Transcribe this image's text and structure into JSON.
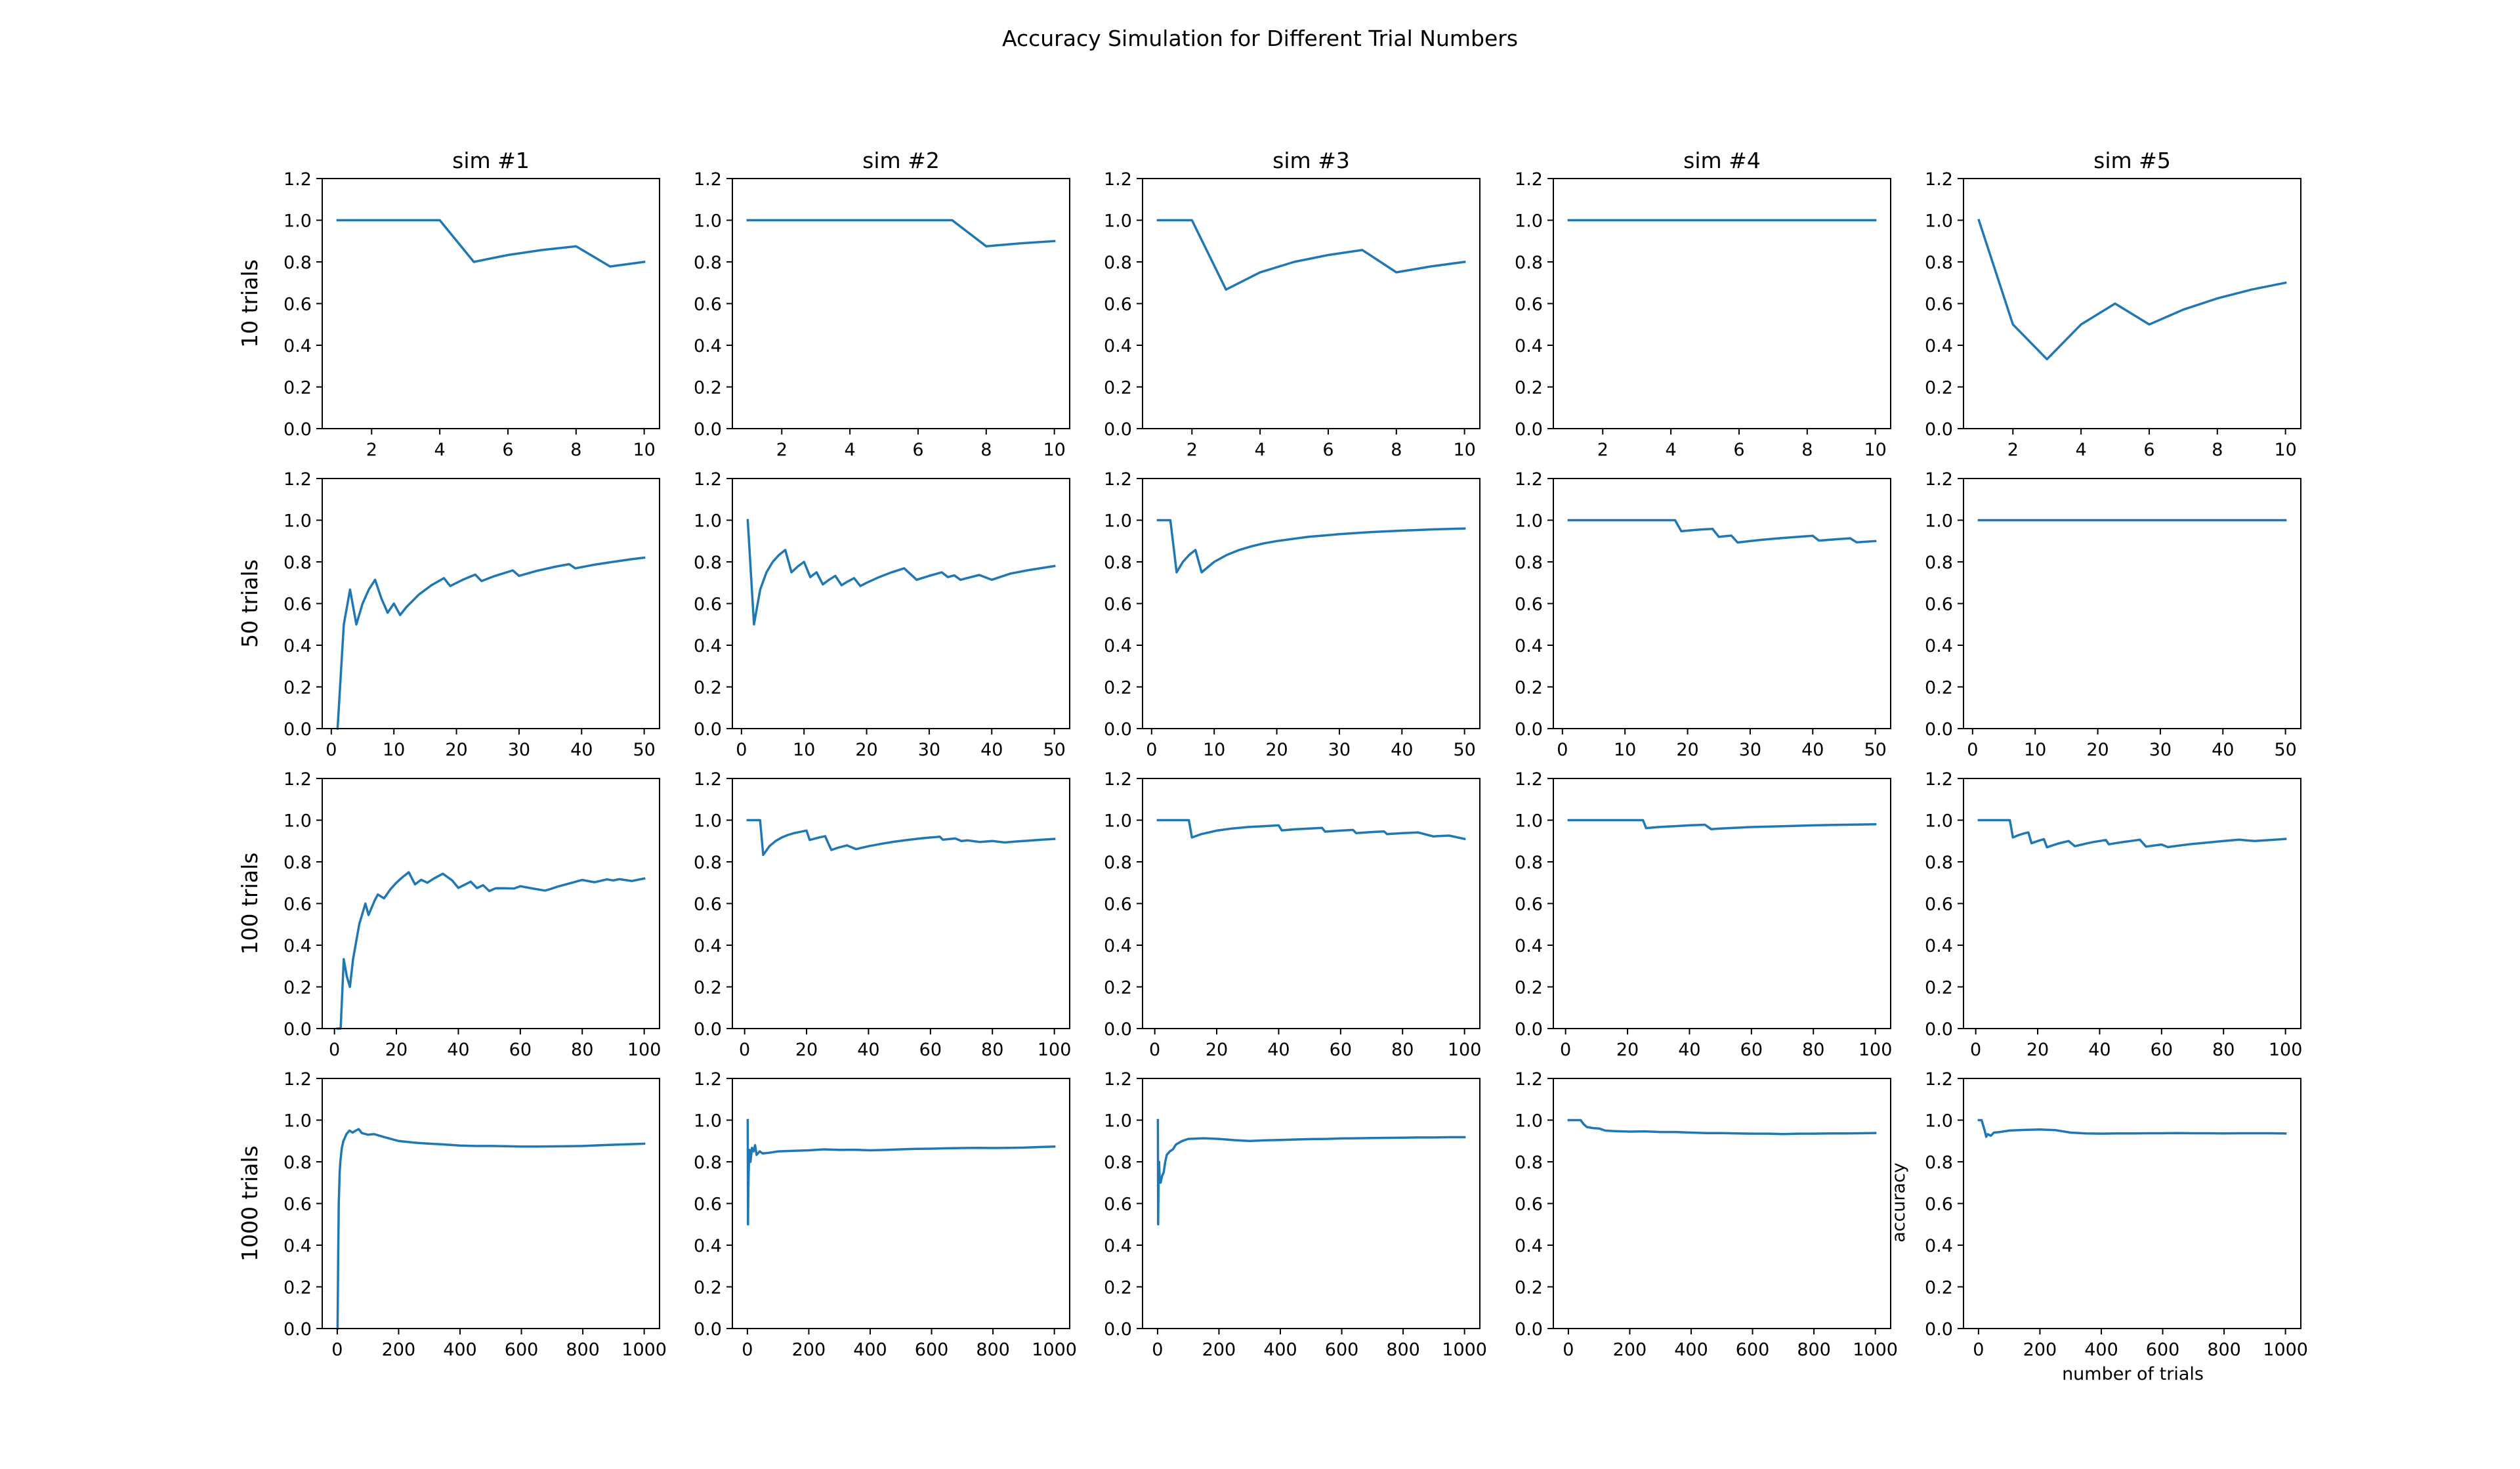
{
  "figure": {
    "title": "Accuracy Simulation for Different Trial Numbers",
    "x_axis_label": "number of trials",
    "y_axis_label": "accuracy",
    "line_color": "#1f77b4",
    "column_titles": [
      "sim #1",
      "sim #2",
      "sim #3",
      "sim #4",
      "sim #5"
    ],
    "row_labels": [
      "10 trials",
      "50 trials",
      "100 trials",
      "1000 trials"
    ],
    "y_ticks": [
      "0.0",
      "0.2",
      "0.4",
      "0.6",
      "0.8",
      "1.0",
      "1.2"
    ],
    "x_ticks_by_row": [
      [
        "2",
        "4",
        "6",
        "8",
        "10"
      ],
      [
        "0",
        "10",
        "20",
        "30",
        "40",
        "50"
      ],
      [
        "0",
        "20",
        "40",
        "60",
        "80",
        "100"
      ],
      [
        "0",
        "200",
        "400",
        "600",
        "800",
        "1000"
      ]
    ]
  },
  "chart_data": {
    "type": "line",
    "grid": false,
    "ylim": [
      0,
      1.2
    ],
    "panels": [
      {
        "row": 0,
        "col": 0,
        "xlim": [
          0.55,
          10.45
        ],
        "x": [
          1,
          2,
          3,
          4,
          5,
          6,
          7,
          8,
          9,
          10
        ],
        "y": [
          1,
          1,
          1,
          1,
          0.8,
          0.833,
          0.857,
          0.875,
          0.778,
          0.8
        ]
      },
      {
        "row": 0,
        "col": 1,
        "xlim": [
          0.55,
          10.45
        ],
        "x": [
          1,
          2,
          3,
          4,
          5,
          6,
          7,
          8,
          9,
          10
        ],
        "y": [
          1,
          1,
          1,
          1,
          1,
          1,
          1,
          0.875,
          0.889,
          0.9
        ]
      },
      {
        "row": 0,
        "col": 2,
        "xlim": [
          0.55,
          10.45
        ],
        "x": [
          1,
          2,
          3,
          4,
          5,
          6,
          7,
          8,
          9,
          10
        ],
        "y": [
          1,
          1,
          0.667,
          0.75,
          0.8,
          0.833,
          0.857,
          0.75,
          0.778,
          0.8
        ]
      },
      {
        "row": 0,
        "col": 3,
        "xlim": [
          0.55,
          10.45
        ],
        "x": [
          1,
          2,
          3,
          4,
          5,
          6,
          7,
          8,
          9,
          10
        ],
        "y": [
          1,
          1,
          1,
          1,
          1,
          1,
          1,
          1,
          1,
          1
        ]
      },
      {
        "row": 0,
        "col": 4,
        "xlim": [
          0.55,
          10.45
        ],
        "x": [
          1,
          2,
          3,
          4,
          5,
          6,
          7,
          8,
          9,
          10
        ],
        "y": [
          1,
          0.5,
          0.333,
          0.5,
          0.6,
          0.5,
          0.571,
          0.625,
          0.667,
          0.7
        ]
      },
      {
        "row": 1,
        "col": 0,
        "xlim": [
          -1.45,
          52.45
        ],
        "x": [
          1,
          2,
          3,
          4,
          5,
          6,
          7,
          8,
          9,
          10,
          11,
          12,
          14,
          16,
          18,
          19,
          21,
          23,
          24,
          26,
          29,
          30,
          33,
          36,
          38,
          39,
          42,
          45,
          48,
          50
        ],
        "y": [
          0,
          0.5,
          0.667,
          0.5,
          0.6,
          0.667,
          0.714,
          0.625,
          0.556,
          0.6,
          0.545,
          0.583,
          0.643,
          0.688,
          0.722,
          0.684,
          0.714,
          0.739,
          0.708,
          0.731,
          0.759,
          0.733,
          0.758,
          0.778,
          0.789,
          0.769,
          0.786,
          0.8,
          0.813,
          0.82
        ]
      },
      {
        "row": 1,
        "col": 1,
        "xlim": [
          -1.45,
          52.45
        ],
        "x": [
          1,
          2,
          3,
          4,
          5,
          6,
          7,
          8,
          9,
          10,
          11,
          12,
          13,
          14,
          15,
          16,
          17,
          18,
          19,
          20,
          22,
          24,
          26,
          28,
          30,
          32,
          33,
          34,
          35,
          36,
          38,
          40,
          43,
          46,
          50
        ],
        "y": [
          1,
          0.5,
          0.667,
          0.75,
          0.8,
          0.833,
          0.857,
          0.75,
          0.778,
          0.8,
          0.727,
          0.75,
          0.692,
          0.714,
          0.733,
          0.688,
          0.706,
          0.722,
          0.684,
          0.7,
          0.727,
          0.75,
          0.769,
          0.714,
          0.733,
          0.75,
          0.727,
          0.735,
          0.714,
          0.722,
          0.737,
          0.714,
          0.744,
          0.761,
          0.78
        ]
      },
      {
        "row": 1,
        "col": 2,
        "xlim": [
          -1.45,
          52.45
        ],
        "x": [
          1,
          2,
          3,
          4,
          5,
          6,
          7,
          8,
          10,
          12,
          14,
          16,
          18,
          20,
          25,
          30,
          35,
          40,
          45,
          50
        ],
        "y": [
          1,
          1,
          1,
          0.75,
          0.8,
          0.833,
          0.857,
          0.75,
          0.8,
          0.833,
          0.857,
          0.875,
          0.889,
          0.9,
          0.92,
          0.933,
          0.943,
          0.95,
          0.956,
          0.96
        ]
      },
      {
        "row": 1,
        "col": 3,
        "xlim": [
          -1.45,
          52.45
        ],
        "x": [
          1,
          5,
          10,
          15,
          18,
          19,
          20,
          22,
          24,
          25,
          26,
          27,
          28,
          30,
          32,
          35,
          38,
          40,
          41,
          44,
          46,
          47,
          50
        ],
        "y": [
          1,
          1,
          1,
          1,
          1,
          0.947,
          0.95,
          0.955,
          0.958,
          0.92,
          0.923,
          0.926,
          0.893,
          0.9,
          0.906,
          0.914,
          0.921,
          0.925,
          0.902,
          0.909,
          0.913,
          0.894,
          0.9
        ]
      },
      {
        "row": 1,
        "col": 4,
        "xlim": [
          -1.45,
          52.45
        ],
        "x": [
          1,
          10,
          20,
          30,
          40,
          50
        ],
        "y": [
          1,
          1,
          1,
          1,
          1,
          1
        ]
      },
      {
        "row": 2,
        "col": 0,
        "xlim": [
          -3.95,
          104.95
        ],
        "x": [
          1,
          2,
          3,
          4,
          5,
          6,
          8,
          10,
          11,
          13,
          14,
          16,
          18,
          20,
          22,
          24,
          26,
          28,
          30,
          32,
          35,
          38,
          40,
          42,
          44,
          46,
          48,
          50,
          52,
          55,
          58,
          60,
          64,
          68,
          70,
          72,
          76,
          80,
          84,
          88,
          90,
          92,
          96,
          100
        ],
        "y": [
          0,
          0,
          0.333,
          0.25,
          0.2,
          0.333,
          0.5,
          0.6,
          0.545,
          0.615,
          0.643,
          0.625,
          0.667,
          0.7,
          0.727,
          0.75,
          0.692,
          0.714,
          0.7,
          0.719,
          0.743,
          0.711,
          0.675,
          0.69,
          0.705,
          0.674,
          0.688,
          0.66,
          0.673,
          0.673,
          0.672,
          0.683,
          0.672,
          0.662,
          0.671,
          0.681,
          0.697,
          0.713,
          0.702,
          0.716,
          0.711,
          0.717,
          0.708,
          0.72
        ]
      },
      {
        "row": 2,
        "col": 1,
        "xlim": [
          -3.95,
          104.95
        ],
        "x": [
          1,
          2,
          3,
          4,
          5,
          6,
          8,
          10,
          12,
          14,
          16,
          18,
          19,
          20,
          21,
          22,
          24,
          26,
          27,
          28,
          30,
          32,
          33,
          36,
          40,
          44,
          48,
          52,
          56,
          60,
          62,
          63,
          64,
          68,
          70,
          72,
          76,
          80,
          84,
          88,
          92,
          96,
          100
        ],
        "y": [
          1,
          1,
          1,
          1,
          1,
          0.833,
          0.875,
          0.9,
          0.917,
          0.929,
          0.938,
          0.944,
          0.947,
          0.95,
          0.905,
          0.909,
          0.917,
          0.923,
          0.889,
          0.857,
          0.867,
          0.875,
          0.879,
          0.861,
          0.875,
          0.886,
          0.896,
          0.904,
          0.911,
          0.917,
          0.919,
          0.921,
          0.906,
          0.912,
          0.9,
          0.903,
          0.895,
          0.9,
          0.893,
          0.898,
          0.902,
          0.906,
          0.91
        ]
      },
      {
        "row": 2,
        "col": 2,
        "xlim": [
          -3.95,
          104.95
        ],
        "x": [
          1,
          5,
          10,
          11,
          12,
          15,
          20,
          25,
          30,
          35,
          40,
          41,
          45,
          50,
          54,
          55,
          60,
          64,
          65,
          70,
          74,
          75,
          80,
          85,
          90,
          91,
          95,
          100
        ],
        "y": [
          1,
          1,
          1,
          1,
          0.917,
          0.933,
          0.95,
          0.96,
          0.967,
          0.971,
          0.975,
          0.951,
          0.956,
          0.96,
          0.963,
          0.945,
          0.95,
          0.953,
          0.938,
          0.943,
          0.946,
          0.933,
          0.938,
          0.941,
          0.922,
          0.923,
          0.926,
          0.91
        ]
      },
      {
        "row": 2,
        "col": 3,
        "xlim": [
          -3.95,
          104.95
        ],
        "x": [
          1,
          5,
          10,
          15,
          20,
          25,
          26,
          30,
          35,
          40,
          45,
          47,
          50,
          60,
          70,
          80,
          90,
          100
        ],
        "y": [
          1,
          1,
          1,
          1,
          1,
          1,
          0.962,
          0.967,
          0.971,
          0.975,
          0.978,
          0.957,
          0.96,
          0.967,
          0.971,
          0.975,
          0.978,
          0.98
        ]
      },
      {
        "row": 2,
        "col": 4,
        "xlim": [
          -3.95,
          104.95
        ],
        "x": [
          1,
          5,
          10,
          11,
          12,
          14,
          16,
          17,
          18,
          20,
          22,
          23,
          25,
          27,
          28,
          30,
          32,
          34,
          36,
          38,
          40,
          42,
          43,
          45,
          48,
          50,
          53,
          55,
          58,
          60,
          62,
          65,
          70,
          75,
          80,
          85,
          90,
          95,
          100
        ],
        "y": [
          1,
          1,
          1,
          1,
          0.917,
          0.929,
          0.938,
          0.941,
          0.889,
          0.9,
          0.909,
          0.87,
          0.88,
          0.889,
          0.893,
          0.9,
          0.875,
          0.882,
          0.889,
          0.895,
          0.9,
          0.905,
          0.884,
          0.889,
          0.896,
          0.9,
          0.906,
          0.873,
          0.879,
          0.883,
          0.871,
          0.877,
          0.886,
          0.893,
          0.9,
          0.906,
          0.9,
          0.905,
          0.91
        ]
      },
      {
        "row": 3,
        "col": 0,
        "xlim": [
          -48.95,
          1049.95
        ],
        "x": [
          1,
          3,
          5,
          8,
          10,
          15,
          20,
          30,
          40,
          50,
          60,
          70,
          80,
          100,
          120,
          150,
          200,
          250,
          300,
          350,
          400,
          450,
          500,
          550,
          600,
          650,
          700,
          750,
          800,
          850,
          900,
          950,
          1000
        ],
        "y": [
          0,
          0.333,
          0.6,
          0.75,
          0.8,
          0.867,
          0.9,
          0.933,
          0.95,
          0.94,
          0.95,
          0.957,
          0.938,
          0.93,
          0.933,
          0.92,
          0.9,
          0.892,
          0.887,
          0.883,
          0.878,
          0.876,
          0.876,
          0.875,
          0.873,
          0.873,
          0.874,
          0.875,
          0.876,
          0.879,
          0.882,
          0.884,
          0.887
        ]
      },
      {
        "row": 3,
        "col": 1,
        "xlim": [
          -48.95,
          1049.95
        ],
        "x": [
          1,
          2,
          3,
          5,
          7,
          10,
          15,
          20,
          25,
          30,
          40,
          50,
          70,
          100,
          150,
          200,
          250,
          300,
          350,
          400,
          450,
          500,
          550,
          600,
          650,
          700,
          750,
          800,
          850,
          900,
          950,
          1000
        ],
        "y": [
          1,
          0.5,
          0.667,
          0.8,
          0.857,
          0.8,
          0.867,
          0.85,
          0.88,
          0.833,
          0.85,
          0.84,
          0.843,
          0.85,
          0.853,
          0.855,
          0.86,
          0.857,
          0.858,
          0.855,
          0.857,
          0.86,
          0.862,
          0.863,
          0.865,
          0.866,
          0.867,
          0.866,
          0.867,
          0.868,
          0.871,
          0.873
        ]
      },
      {
        "row": 3,
        "col": 2,
        "xlim": [
          -48.95,
          1049.95
        ],
        "x": [
          1,
          2,
          3,
          5,
          7,
          10,
          15,
          20,
          25,
          30,
          40,
          50,
          60,
          80,
          100,
          150,
          200,
          250,
          300,
          350,
          400,
          450,
          500,
          550,
          600,
          650,
          700,
          750,
          800,
          850,
          900,
          950,
          1000
        ],
        "y": [
          1,
          0.5,
          0.667,
          0.8,
          0.714,
          0.7,
          0.733,
          0.75,
          0.8,
          0.833,
          0.85,
          0.86,
          0.883,
          0.9,
          0.91,
          0.913,
          0.91,
          0.904,
          0.9,
          0.903,
          0.905,
          0.907,
          0.909,
          0.91,
          0.912,
          0.913,
          0.914,
          0.915,
          0.916,
          0.917,
          0.917,
          0.918,
          0.918
        ]
      },
      {
        "row": 3,
        "col": 3,
        "xlim": [
          -48.95,
          1049.95
        ],
        "x": [
          1,
          20,
          40,
          50,
          60,
          80,
          100,
          120,
          150,
          200,
          250,
          300,
          350,
          400,
          450,
          500,
          550,
          600,
          650,
          700,
          750,
          800,
          850,
          900,
          950,
          1000
        ],
        "y": [
          1,
          1,
          1,
          0.98,
          0.967,
          0.962,
          0.96,
          0.95,
          0.947,
          0.945,
          0.946,
          0.943,
          0.943,
          0.94,
          0.938,
          0.938,
          0.936,
          0.935,
          0.935,
          0.933,
          0.935,
          0.935,
          0.936,
          0.936,
          0.937,
          0.938
        ]
      },
      {
        "row": 3,
        "col": 4,
        "xlim": [
          -48.95,
          1049.95
        ],
        "x": [
          1,
          10,
          20,
          25,
          30,
          40,
          50,
          70,
          100,
          150,
          200,
          250,
          300,
          350,
          400,
          450,
          500,
          550,
          600,
          650,
          700,
          750,
          800,
          850,
          900,
          950,
          1000
        ],
        "y": [
          1,
          1,
          0.95,
          0.92,
          0.933,
          0.925,
          0.94,
          0.943,
          0.95,
          0.953,
          0.955,
          0.952,
          0.94,
          0.936,
          0.935,
          0.936,
          0.936,
          0.937,
          0.937,
          0.938,
          0.937,
          0.937,
          0.936,
          0.937,
          0.937,
          0.937,
          0.936
        ]
      }
    ]
  }
}
